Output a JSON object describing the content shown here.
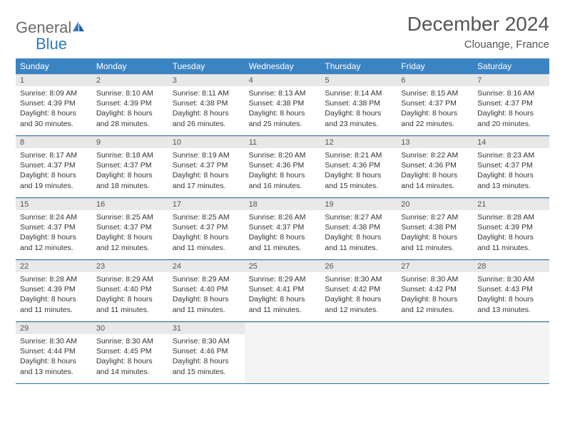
{
  "brand": {
    "word1": "General",
    "word2": "Blue",
    "logo_color": "#2f7bbf",
    "text1_color": "#6a6a6a",
    "text2_color": "#2f7bbf"
  },
  "header": {
    "title": "December 2024",
    "location": "Clouange, France",
    "title_color": "#555555",
    "title_fontsize": 28,
    "location_fontsize": 15
  },
  "calendar": {
    "header_bg": "#3b84c4",
    "header_text_color": "#ffffff",
    "daynum_bg": "#e8e8e8",
    "row_border_color": "#2f6fa8",
    "empty_bg": "#f3f3f3",
    "text_color": "#333333",
    "cell_fontsize": 10.5,
    "weekdays": [
      "Sunday",
      "Monday",
      "Tuesday",
      "Wednesday",
      "Thursday",
      "Friday",
      "Saturday"
    ],
    "weeks": [
      [
        {
          "n": "1",
          "sr": "Sunrise: 8:09 AM",
          "ss": "Sunset: 4:39 PM",
          "dl": "Daylight: 8 hours and 30 minutes."
        },
        {
          "n": "2",
          "sr": "Sunrise: 8:10 AM",
          "ss": "Sunset: 4:39 PM",
          "dl": "Daylight: 8 hours and 28 minutes."
        },
        {
          "n": "3",
          "sr": "Sunrise: 8:11 AM",
          "ss": "Sunset: 4:38 PM",
          "dl": "Daylight: 8 hours and 26 minutes."
        },
        {
          "n": "4",
          "sr": "Sunrise: 8:13 AM",
          "ss": "Sunset: 4:38 PM",
          "dl": "Daylight: 8 hours and 25 minutes."
        },
        {
          "n": "5",
          "sr": "Sunrise: 8:14 AM",
          "ss": "Sunset: 4:38 PM",
          "dl": "Daylight: 8 hours and 23 minutes."
        },
        {
          "n": "6",
          "sr": "Sunrise: 8:15 AM",
          "ss": "Sunset: 4:37 PM",
          "dl": "Daylight: 8 hours and 22 minutes."
        },
        {
          "n": "7",
          "sr": "Sunrise: 8:16 AM",
          "ss": "Sunset: 4:37 PM",
          "dl": "Daylight: 8 hours and 20 minutes."
        }
      ],
      [
        {
          "n": "8",
          "sr": "Sunrise: 8:17 AM",
          "ss": "Sunset: 4:37 PM",
          "dl": "Daylight: 8 hours and 19 minutes."
        },
        {
          "n": "9",
          "sr": "Sunrise: 8:18 AM",
          "ss": "Sunset: 4:37 PM",
          "dl": "Daylight: 8 hours and 18 minutes."
        },
        {
          "n": "10",
          "sr": "Sunrise: 8:19 AM",
          "ss": "Sunset: 4:37 PM",
          "dl": "Daylight: 8 hours and 17 minutes."
        },
        {
          "n": "11",
          "sr": "Sunrise: 8:20 AM",
          "ss": "Sunset: 4:36 PM",
          "dl": "Daylight: 8 hours and 16 minutes."
        },
        {
          "n": "12",
          "sr": "Sunrise: 8:21 AM",
          "ss": "Sunset: 4:36 PM",
          "dl": "Daylight: 8 hours and 15 minutes."
        },
        {
          "n": "13",
          "sr": "Sunrise: 8:22 AM",
          "ss": "Sunset: 4:36 PM",
          "dl": "Daylight: 8 hours and 14 minutes."
        },
        {
          "n": "14",
          "sr": "Sunrise: 8:23 AM",
          "ss": "Sunset: 4:37 PM",
          "dl": "Daylight: 8 hours and 13 minutes."
        }
      ],
      [
        {
          "n": "15",
          "sr": "Sunrise: 8:24 AM",
          "ss": "Sunset: 4:37 PM",
          "dl": "Daylight: 8 hours and 12 minutes."
        },
        {
          "n": "16",
          "sr": "Sunrise: 8:25 AM",
          "ss": "Sunset: 4:37 PM",
          "dl": "Daylight: 8 hours and 12 minutes."
        },
        {
          "n": "17",
          "sr": "Sunrise: 8:25 AM",
          "ss": "Sunset: 4:37 PM",
          "dl": "Daylight: 8 hours and 11 minutes."
        },
        {
          "n": "18",
          "sr": "Sunrise: 8:26 AM",
          "ss": "Sunset: 4:37 PM",
          "dl": "Daylight: 8 hours and 11 minutes."
        },
        {
          "n": "19",
          "sr": "Sunrise: 8:27 AM",
          "ss": "Sunset: 4:38 PM",
          "dl": "Daylight: 8 hours and 11 minutes."
        },
        {
          "n": "20",
          "sr": "Sunrise: 8:27 AM",
          "ss": "Sunset: 4:38 PM",
          "dl": "Daylight: 8 hours and 11 minutes."
        },
        {
          "n": "21",
          "sr": "Sunrise: 8:28 AM",
          "ss": "Sunset: 4:39 PM",
          "dl": "Daylight: 8 hours and 11 minutes."
        }
      ],
      [
        {
          "n": "22",
          "sr": "Sunrise: 8:28 AM",
          "ss": "Sunset: 4:39 PM",
          "dl": "Daylight: 8 hours and 11 minutes."
        },
        {
          "n": "23",
          "sr": "Sunrise: 8:29 AM",
          "ss": "Sunset: 4:40 PM",
          "dl": "Daylight: 8 hours and 11 minutes."
        },
        {
          "n": "24",
          "sr": "Sunrise: 8:29 AM",
          "ss": "Sunset: 4:40 PM",
          "dl": "Daylight: 8 hours and 11 minutes."
        },
        {
          "n": "25",
          "sr": "Sunrise: 8:29 AM",
          "ss": "Sunset: 4:41 PM",
          "dl": "Daylight: 8 hours and 11 minutes."
        },
        {
          "n": "26",
          "sr": "Sunrise: 8:30 AM",
          "ss": "Sunset: 4:42 PM",
          "dl": "Daylight: 8 hours and 12 minutes."
        },
        {
          "n": "27",
          "sr": "Sunrise: 8:30 AM",
          "ss": "Sunset: 4:42 PM",
          "dl": "Daylight: 8 hours and 12 minutes."
        },
        {
          "n": "28",
          "sr": "Sunrise: 8:30 AM",
          "ss": "Sunset: 4:43 PM",
          "dl": "Daylight: 8 hours and 13 minutes."
        }
      ],
      [
        {
          "n": "29",
          "sr": "Sunrise: 8:30 AM",
          "ss": "Sunset: 4:44 PM",
          "dl": "Daylight: 8 hours and 13 minutes."
        },
        {
          "n": "30",
          "sr": "Sunrise: 8:30 AM",
          "ss": "Sunset: 4:45 PM",
          "dl": "Daylight: 8 hours and 14 minutes."
        },
        {
          "n": "31",
          "sr": "Sunrise: 8:30 AM",
          "ss": "Sunset: 4:46 PM",
          "dl": "Daylight: 8 hours and 15 minutes."
        },
        null,
        null,
        null,
        null
      ]
    ]
  }
}
